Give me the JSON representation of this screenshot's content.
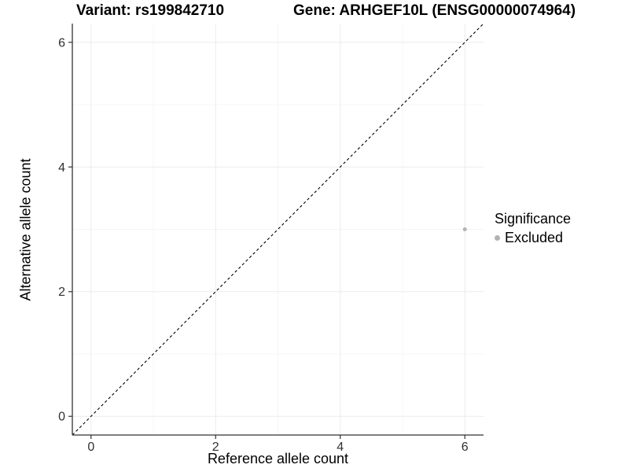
{
  "header": {
    "variant_title": "Variant: rs199842710",
    "gene_title": "Gene: ARHGEF10L (ENSG00000074964)"
  },
  "chart_data": {
    "type": "scatter",
    "xlabel": "Reference allele count",
    "ylabel": "Alternative allele count",
    "xlim": [
      -0.3,
      6.3
    ],
    "ylim": [
      -0.3,
      6.3
    ],
    "x_ticks": [
      0,
      2,
      4,
      6
    ],
    "y_ticks": [
      0,
      2,
      4,
      6
    ],
    "x_minor_ticks": [
      1,
      3,
      5
    ],
    "y_minor_ticks": [
      1,
      3,
      5
    ],
    "grid": "on",
    "reference_line": {
      "type": "identity",
      "style": "dashed",
      "color": "#000000"
    },
    "series": [
      {
        "name": "Excluded",
        "color": "#b3b3b3",
        "points": [
          {
            "x": 6,
            "y": 3
          }
        ]
      }
    ],
    "legend": {
      "title": "Significance",
      "position": "right",
      "entries": [
        {
          "label": "Excluded",
          "color": "#b3b3b3"
        }
      ]
    }
  },
  "style": {
    "grid_major_color": "#ebebeb",
    "grid_minor_color": "#f4f4f4",
    "axis_line_color": "#333333",
    "tick_color": "#333333",
    "tick_label_color": "#303030",
    "point_color": "#b3b3b3"
  }
}
